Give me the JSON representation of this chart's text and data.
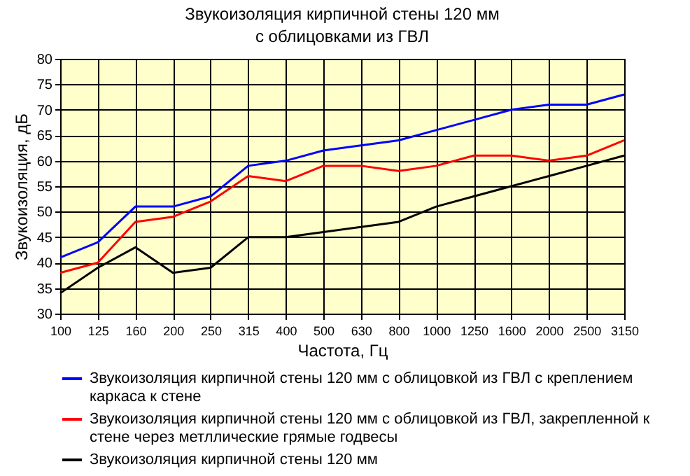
{
  "chart_data": {
    "type": "line",
    "title": [
      "Звукоизоляция кирпичной стены 120 мм",
      "с облицовками из ГВЛ"
    ],
    "xlabel": "Частота, Гц",
    "ylabel": "Звукоизоляция, дБ",
    "categories": [
      "100",
      "125",
      "160",
      "200",
      "250",
      "315",
      "400",
      "500",
      "630",
      "800",
      "1000",
      "1250",
      "1600",
      "2000",
      "2500",
      "3150"
    ],
    "series": [
      {
        "name": "Звукоизоляция кирпичной стены 120 мм с облицовкой из ГВЛ с креплением каркаса к стене",
        "color": "#0000ff",
        "values": [
          41,
          44,
          51,
          51,
          53,
          59,
          60,
          62,
          63,
          64,
          66,
          68,
          70,
          71,
          71,
          73
        ]
      },
      {
        "name": "Звукоизоляция кирпичной стены 120 мм с облицовкой из ГВЛ, закрепленной к стене через метллические грямые годвесы",
        "color": "#ff0000",
        "values": [
          38,
          40,
          48,
          49,
          52,
          57,
          56,
          59,
          59,
          58,
          59,
          61,
          61,
          60,
          61,
          64
        ]
      },
      {
        "name": "Звукоизоляция кирпичной стены 120 мм",
        "color": "#000000",
        "values": [
          34,
          39,
          43,
          38,
          39,
          45,
          45,
          46,
          47,
          48,
          51,
          53,
          55,
          57,
          59,
          61
        ]
      }
    ],
    "ylim": [
      30,
      80
    ],
    "yticks": [
      30,
      35,
      40,
      45,
      50,
      55,
      60,
      65,
      70,
      75,
      80
    ],
    "grid": true,
    "legend": "bottom",
    "marker": "none",
    "line_style": "solid"
  }
}
